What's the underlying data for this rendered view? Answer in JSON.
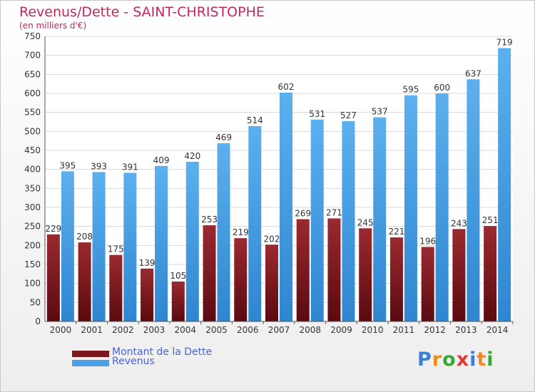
{
  "header": {
    "title": "Revenus/Dette - SAINT-CHRISTOPHE",
    "subtitle": "(en milliers d'€)"
  },
  "chart_data": {
    "type": "bar",
    "categories": [
      "2000",
      "2001",
      "2002",
      "2003",
      "2004",
      "2005",
      "2006",
      "2007",
      "2008",
      "2009",
      "2010",
      "2011",
      "2012",
      "2013",
      "2014"
    ],
    "series": [
      {
        "name": "Montant de la Dette",
        "color": "#7a1a1f",
        "values": [
          229,
          208,
          175,
          139,
          105,
          253,
          219,
          202,
          269,
          271,
          245,
          221,
          196,
          243,
          251
        ],
        "labels": [
          "229",
          "208",
          "175",
          "139",
          "105",
          "253",
          "219",
          "202",
          "269",
          "271",
          "245",
          "221",
          "196",
          "243",
          "251"
        ]
      },
      {
        "name": "Revenus",
        "color": "#4aa0e4",
        "values": [
          395,
          393,
          391,
          409,
          420,
          469,
          514,
          602,
          531,
          527,
          537,
          595,
          600,
          637,
          719
        ],
        "labels": [
          "395",
          "393",
          "391",
          "409",
          "420",
          "469",
          "514",
          "602",
          "531",
          "527",
          "537",
          "595",
          "600",
          "637",
          "719"
        ]
      }
    ],
    "ylim": [
      0,
      750
    ],
    "yticks": [
      "0",
      "50",
      "100",
      "150",
      "200",
      "250",
      "300",
      "350",
      "400",
      "450",
      "500",
      "550",
      "600",
      "650",
      "700",
      "750"
    ],
    "grid": true,
    "legend_position": "bottom-left"
  },
  "legend": {
    "items": [
      {
        "label": "Montant de la Dette",
        "color": "#7a1a1f"
      },
      {
        "label": "Revenus",
        "color": "#4aa0e4"
      }
    ]
  },
  "logo": {
    "letters": [
      "P",
      "r",
      "o",
      "x",
      "i",
      "t",
      "i"
    ],
    "colors": [
      "#3a7fd4",
      "#f08a1c",
      "#3aa63a",
      "#e03a3a",
      "#3a7fd4",
      "#f08a1c",
      "#3aa63a"
    ]
  }
}
